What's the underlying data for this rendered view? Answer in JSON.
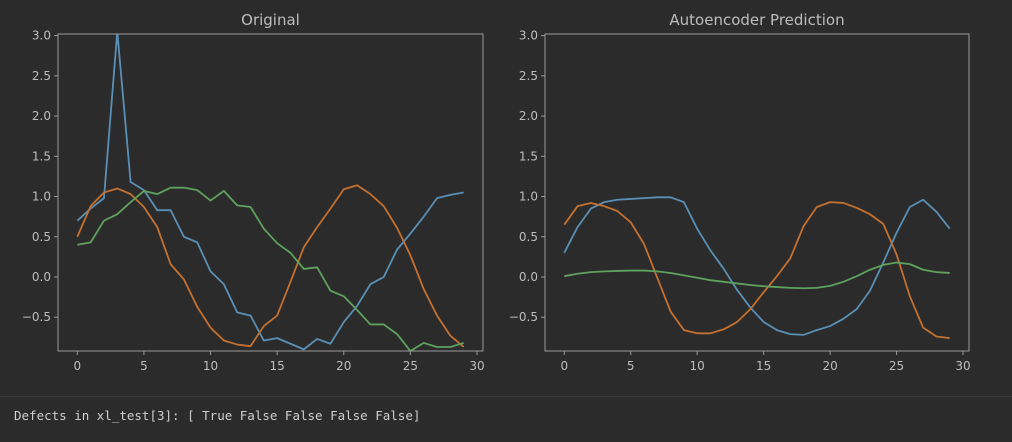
{
  "colors": {
    "background": "#2b2b2b",
    "axes_edge": "#9a9a9a",
    "text": "#bdbdbd",
    "series": [
      "#5a8fb5",
      "#c4702f",
      "#5ea25e"
    ]
  },
  "output_text": "Defects in xl_test[3]: [ True False False False False]",
  "chart_data": [
    {
      "type": "line",
      "title": "Original",
      "xlabel": "",
      "ylabel": "",
      "xlim": [
        -1.45,
        30.45
      ],
      "ylim": [
        -0.92,
        3.02
      ],
      "xticks": [
        0,
        5,
        10,
        15,
        20,
        25,
        30
      ],
      "yticks": [
        -0.5,
        0.0,
        0.5,
        1.0,
        1.5,
        2.0,
        2.5,
        3.0
      ],
      "ytick_labels": [
        "−0.5",
        "0.0",
        "0.5",
        "1.0",
        "1.5",
        "2.0",
        "2.5",
        "3.0"
      ],
      "grid": false,
      "x": [
        0,
        1,
        2,
        3,
        4,
        5,
        6,
        7,
        8,
        9,
        10,
        11,
        12,
        13,
        14,
        15,
        16,
        17,
        18,
        19,
        20,
        21,
        22,
        23,
        24,
        25,
        26,
        27,
        28,
        29
      ],
      "series": [
        {
          "values": [
            0.7,
            0.85,
            0.98,
            3.05,
            1.18,
            1.08,
            0.83,
            0.83,
            0.5,
            0.43,
            0.07,
            -0.09,
            -0.44,
            -0.48,
            -0.79,
            -0.76,
            -0.83,
            -0.9,
            -0.77,
            -0.83,
            -0.56,
            -0.36,
            -0.09,
            0.0,
            0.34,
            0.54,
            0.75,
            0.98,
            1.02,
            1.05
          ]
        },
        {
          "values": [
            0.5,
            0.88,
            1.05,
            1.1,
            1.03,
            0.87,
            0.62,
            0.16,
            -0.03,
            -0.37,
            -0.63,
            -0.79,
            -0.84,
            -0.86,
            -0.61,
            -0.48,
            -0.06,
            0.37,
            0.62,
            0.85,
            1.09,
            1.14,
            1.03,
            0.88,
            0.61,
            0.27,
            -0.15,
            -0.48,
            -0.73,
            -0.87
          ]
        },
        {
          "values": [
            0.4,
            0.43,
            0.7,
            0.78,
            0.93,
            1.07,
            1.03,
            1.11,
            1.11,
            1.08,
            0.95,
            1.07,
            0.89,
            0.87,
            0.6,
            0.42,
            0.3,
            0.1,
            0.12,
            -0.17,
            -0.24,
            -0.41,
            -0.59,
            -0.59,
            -0.71,
            -0.92,
            -0.82,
            -0.87,
            -0.87,
            -0.82
          ]
        }
      ]
    },
    {
      "type": "line",
      "title": "Autoencoder Prediction",
      "xlabel": "",
      "ylabel": "",
      "xlim": [
        -1.45,
        30.45
      ],
      "ylim": [
        -0.92,
        3.02
      ],
      "xticks": [
        0,
        5,
        10,
        15,
        20,
        25,
        30
      ],
      "yticks": [
        -0.5,
        0.0,
        0.5,
        1.0,
        1.5,
        2.0,
        2.5,
        3.0
      ],
      "ytick_labels": [
        "−0.5",
        "0.0",
        "0.5",
        "1.0",
        "1.5",
        "2.0",
        "2.5",
        "3.0"
      ],
      "grid": false,
      "x": [
        0,
        1,
        2,
        3,
        4,
        5,
        6,
        7,
        8,
        9,
        10,
        11,
        12,
        13,
        14,
        15,
        16,
        17,
        18,
        19,
        20,
        21,
        22,
        23,
        24,
        25,
        26,
        27,
        28,
        29
      ],
      "series": [
        {
          "values": [
            0.3,
            0.62,
            0.85,
            0.93,
            0.96,
            0.97,
            0.98,
            0.99,
            0.99,
            0.93,
            0.6,
            0.33,
            0.1,
            -0.16,
            -0.38,
            -0.56,
            -0.66,
            -0.71,
            -0.72,
            -0.66,
            -0.61,
            -0.52,
            -0.4,
            -0.17,
            0.18,
            0.55,
            0.87,
            0.96,
            0.81,
            0.6
          ]
        },
        {
          "values": [
            0.65,
            0.88,
            0.92,
            0.88,
            0.82,
            0.68,
            0.41,
            -0.01,
            -0.43,
            -0.66,
            -0.7,
            -0.7,
            -0.65,
            -0.56,
            -0.4,
            -0.19,
            0.01,
            0.23,
            0.63,
            0.87,
            0.93,
            0.92,
            0.86,
            0.78,
            0.66,
            0.28,
            -0.24,
            -0.63,
            -0.74,
            -0.76
          ]
        },
        {
          "values": [
            0.01,
            0.04,
            0.06,
            0.07,
            0.075,
            0.08,
            0.08,
            0.07,
            0.05,
            0.02,
            -0.01,
            -0.04,
            -0.06,
            -0.08,
            -0.1,
            -0.115,
            -0.125,
            -0.135,
            -0.14,
            -0.135,
            -0.11,
            -0.06,
            0.01,
            0.09,
            0.15,
            0.18,
            0.16,
            0.09,
            0.06,
            0.05
          ]
        }
      ]
    }
  ]
}
